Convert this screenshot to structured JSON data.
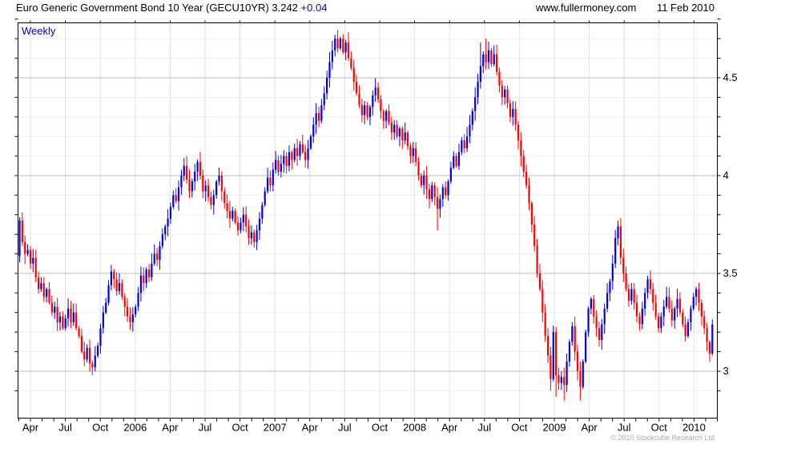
{
  "header": {
    "title": "Euro Generic Government Bond 10 Year (GECU10YR) 3.242",
    "change": "+0.04",
    "site": "www.fullermoney.com",
    "date": "11 Feb 2010"
  },
  "chart": {
    "frequency_label": "Weekly",
    "copyright": "© 2010 Stockcube Research Ltd"
  },
  "chart_data": {
    "type": "candlestick-ohlc",
    "title": "Euro Generic Government Bond 10 Year (GECU10YR)",
    "ticker": "GECU10YR",
    "last": 3.242,
    "change": "+0.04",
    "frequency": "weekly",
    "start": "2005-03",
    "end": "2010-02",
    "x_tick_labels": [
      "Apr",
      "Jul",
      "Oct",
      "2006",
      "Apr",
      "Jul",
      "Oct",
      "2007",
      "Apr",
      "Jul",
      "Oct",
      "2008",
      "Apr",
      "Jul",
      "Oct",
      "2009",
      "Apr",
      "Jul",
      "Oct",
      "2010"
    ],
    "y_ticks": [
      3,
      3.5,
      4,
      4.5
    ],
    "y_minor_step": 0.1,
    "ylim": [
      2.76,
      4.78
    ],
    "grid": true,
    "legend_position": "none",
    "up_color": "#0000e6",
    "down_color": "#ff0000",
    "first_open": 3.59,
    "weekly_closes": [
      3.77,
      3.66,
      3.6,
      3.62,
      3.55,
      3.58,
      3.48,
      3.42,
      3.45,
      3.38,
      3.42,
      3.35,
      3.3,
      3.33,
      3.25,
      3.28,
      3.22,
      3.27,
      3.32,
      3.25,
      3.3,
      3.22,
      3.18,
      3.1,
      3.06,
      3.12,
      3.04,
      3.02,
      3.08,
      3.13,
      3.22,
      3.3,
      3.35,
      3.44,
      3.51,
      3.47,
      3.41,
      3.45,
      3.38,
      3.33,
      3.28,
      3.25,
      3.29,
      3.33,
      3.4,
      3.49,
      3.45,
      3.52,
      3.48,
      3.55,
      3.6,
      3.57,
      3.64,
      3.7,
      3.74,
      3.78,
      3.84,
      3.9,
      3.87,
      3.94,
      4.0,
      4.05,
      3.98,
      3.92,
      3.97,
      4.02,
      4.07,
      4.0,
      3.92,
      3.95,
      3.89,
      3.85,
      3.9,
      3.97,
      4.0,
      3.92,
      3.86,
      3.82,
      3.78,
      3.82,
      3.76,
      3.72,
      3.76,
      3.8,
      3.74,
      3.68,
      3.71,
      3.66,
      3.72,
      3.78,
      3.85,
      3.92,
      3.99,
      3.95,
      4.03,
      4.08,
      4.02,
      4.06,
      4.1,
      4.05,
      4.12,
      4.08,
      4.14,
      4.1,
      4.16,
      4.12,
      4.08,
      4.14,
      4.2,
      4.26,
      4.32,
      4.28,
      4.36,
      4.42,
      4.5,
      4.58,
      4.64,
      4.7,
      4.65,
      4.7,
      4.63,
      4.68,
      4.6,
      4.55,
      4.48,
      4.42,
      4.36,
      4.31,
      4.36,
      4.3,
      4.35,
      4.41,
      4.45,
      4.39,
      4.33,
      4.28,
      4.33,
      4.27,
      4.22,
      4.26,
      4.2,
      4.24,
      4.18,
      4.22,
      4.15,
      4.1,
      4.14,
      4.07,
      4.0,
      3.95,
      4.0,
      3.93,
      3.88,
      3.95,
      3.89,
      3.83,
      3.88,
      3.94,
      3.9,
      3.97,
      4.04,
      4.1,
      4.05,
      4.12,
      4.18,
      4.14,
      4.2,
      4.26,
      4.33,
      4.4,
      4.48,
      4.56,
      4.62,
      4.58,
      4.64,
      4.57,
      4.62,
      4.53,
      4.46,
      4.4,
      4.44,
      4.37,
      4.3,
      4.34,
      4.26,
      4.18,
      4.1,
      4.02,
      3.95,
      3.86,
      3.75,
      3.64,
      3.5,
      3.42,
      3.3,
      3.18,
      3.08,
      2.96,
      3.2,
      2.98,
      2.94,
      2.97,
      2.93,
      3.05,
      3.15,
      3.23,
      3.1,
      3.0,
      2.92,
      3.05,
      3.2,
      3.32,
      3.37,
      3.28,
      3.22,
      3.16,
      3.24,
      3.32,
      3.4,
      3.46,
      3.55,
      3.68,
      3.74,
      3.58,
      3.5,
      3.42,
      3.36,
      3.42,
      3.35,
      3.28,
      3.24,
      3.32,
      3.4,
      3.47,
      3.42,
      3.35,
      3.28,
      3.22,
      3.28,
      3.33,
      3.38,
      3.32,
      3.26,
      3.32,
      3.37,
      3.3,
      3.24,
      3.18,
      3.25,
      3.32,
      3.38,
      3.42,
      3.35,
      3.28,
      3.22,
      3.15,
      3.09,
      3.24
    ],
    "wick_overrides": {
      "27": {
        "l": 2.98
      },
      "61": {
        "h": 4.09
      },
      "117": {
        "h": 4.72
      },
      "119": {
        "h": 4.71
      },
      "155": {
        "l": 3.72
      },
      "171": {
        "h": 4.68
      },
      "173": {
        "h": 4.7
      },
      "197": {
        "l": 2.9
      },
      "199": {
        "l": 2.87
      },
      "202": {
        "l": 2.85
      },
      "208": {
        "l": 2.85
      },
      "222": {
        "h": 3.77
      }
    }
  }
}
